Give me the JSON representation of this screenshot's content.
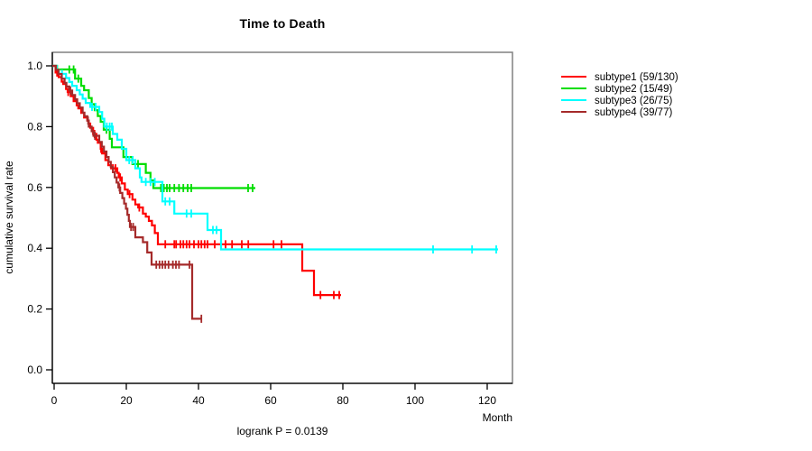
{
  "chart_data": {
    "type": "line",
    "subtype": "kaplan-meier-survival-steps",
    "title": "Time to Death",
    "xlabel": "Month",
    "ylabel": "cumulative survival rate",
    "annotation": "logrank P = 0.0139",
    "xlim": [
      0,
      127
    ],
    "ylim": [
      0,
      1.04
    ],
    "x_ticks": [
      0,
      20,
      40,
      60,
      80,
      100,
      120
    ],
    "y_ticks": [
      "0.0",
      "0.2",
      "0.4",
      "0.6",
      "0.8",
      "1.0"
    ],
    "grid": false,
    "legend_position": "right-outside",
    "frame_color": "#808080",
    "axis_color": "#000000",
    "series": [
      {
        "name": "subtype1 (59/130)",
        "events": "59/130",
        "color": "#FF0000",
        "end_month": 79.5,
        "points": [
          [
            0,
            1.0
          ],
          [
            0.4,
            0.978
          ],
          [
            1.25,
            0.963
          ],
          [
            2.1,
            0.948
          ],
          [
            2.5,
            0.94
          ],
          [
            3.3,
            0.924
          ],
          [
            3.75,
            0.914
          ],
          [
            4.6,
            0.9
          ],
          [
            5.4,
            0.884
          ],
          [
            6.25,
            0.87
          ],
          [
            6.7,
            0.86
          ],
          [
            7.5,
            0.845
          ],
          [
            8.3,
            0.83
          ],
          [
            9.2,
            0.82
          ],
          [
            9.6,
            0.81
          ],
          [
            10,
            0.796
          ],
          [
            10.8,
            0.776
          ],
          [
            11.7,
            0.757
          ],
          [
            12.1,
            0.747
          ],
          [
            12.9,
            0.727
          ],
          [
            13.3,
            0.712
          ],
          [
            14.2,
            0.69
          ],
          [
            15,
            0.673
          ],
          [
            15.8,
            0.663
          ],
          [
            17.5,
            0.648
          ],
          [
            17.9,
            0.633
          ],
          [
            18.75,
            0.613
          ],
          [
            19.6,
            0.593
          ],
          [
            20.4,
            0.578
          ],
          [
            21.7,
            0.56
          ],
          [
            22.5,
            0.544
          ],
          [
            23.3,
            0.534
          ],
          [
            24.6,
            0.514
          ],
          [
            25.4,
            0.504
          ],
          [
            26.25,
            0.49
          ],
          [
            27.1,
            0.475
          ],
          [
            27.9,
            0.45
          ],
          [
            28.75,
            0.413
          ],
          [
            68.75,
            0.326
          ],
          [
            72,
            0.246
          ]
        ],
        "censors": [
          0.8,
          3.9,
          11.2,
          13.0,
          16.3,
          17.0,
          18.3,
          20.9,
          23.6,
          30.8,
          33.3,
          33.8,
          35.0,
          35.8,
          36.7,
          37.5,
          38.75,
          40.0,
          40.8,
          41.7,
          42.5,
          44.5,
          47.5,
          49.3,
          52.0,
          53.8,
          60.8,
          63.0,
          73.8,
          77.5,
          79.0
        ]
      },
      {
        "name": "subtype2 (15/49)",
        "events": "15/49",
        "color": "#00DD00",
        "end_month": 55.75,
        "points": [
          [
            0,
            1.0
          ],
          [
            0.8,
            0.988
          ],
          [
            5.8,
            0.958
          ],
          [
            7.5,
            0.934
          ],
          [
            8.3,
            0.92
          ],
          [
            9.6,
            0.894
          ],
          [
            10.4,
            0.874
          ],
          [
            11.25,
            0.854
          ],
          [
            12.1,
            0.835
          ],
          [
            12.9,
            0.816
          ],
          [
            13.75,
            0.79
          ],
          [
            15.4,
            0.76
          ],
          [
            16,
            0.732
          ],
          [
            19.2,
            0.7
          ],
          [
            21.7,
            0.677
          ],
          [
            25.4,
            0.648
          ],
          [
            26.7,
            0.623
          ],
          [
            27.5,
            0.598
          ]
        ],
        "censors": [
          4.2,
          5.4,
          6.7,
          14.5,
          23.25,
          29.6,
          30.4,
          31.25,
          32.0,
          33.3,
          34.6,
          35.8,
          37.0,
          38.0,
          53.75,
          55.0
        ]
      },
      {
        "name": "subtype3 (26/75)",
        "events": "26/75",
        "color": "#00FFFF",
        "end_month": 123,
        "points": [
          [
            0,
            1.0
          ],
          [
            0.7,
            0.987
          ],
          [
            1.3,
            0.974
          ],
          [
            3.3,
            0.96
          ],
          [
            4.2,
            0.947
          ],
          [
            5,
            0.934
          ],
          [
            6.25,
            0.92
          ],
          [
            7.1,
            0.906
          ],
          [
            7.9,
            0.892
          ],
          [
            8.75,
            0.878
          ],
          [
            10,
            0.865
          ],
          [
            12.5,
            0.848
          ],
          [
            13.3,
            0.826
          ],
          [
            13.9,
            0.8
          ],
          [
            16.25,
            0.776
          ],
          [
            17.5,
            0.757
          ],
          [
            18.75,
            0.727
          ],
          [
            20,
            0.69
          ],
          [
            22.5,
            0.663
          ],
          [
            23.75,
            0.633
          ],
          [
            24.2,
            0.618
          ],
          [
            30,
            0.554
          ],
          [
            33.3,
            0.514
          ],
          [
            42.5,
            0.46
          ],
          [
            46.25,
            0.396
          ]
        ],
        "censors": [
          2.2,
          10.5,
          11.5,
          14.6,
          15.4,
          16.0,
          20.8,
          21.75,
          25.4,
          26.7,
          27.9,
          30.8,
          32.0,
          36.7,
          38.0,
          44.0,
          45.0,
          105.0,
          115.8,
          122.5
        ]
      },
      {
        "name": "subtype4 (39/77)",
        "events": "39/77",
        "color": "#A52A2A",
        "end_month": 41,
        "points": [
          [
            0,
            1.0
          ],
          [
            0.5,
            0.987
          ],
          [
            1.2,
            0.973
          ],
          [
            2.1,
            0.958
          ],
          [
            2.9,
            0.944
          ],
          [
            3.4,
            0.932
          ],
          [
            4.2,
            0.919
          ],
          [
            5,
            0.904
          ],
          [
            5.8,
            0.89
          ],
          [
            6.4,
            0.877
          ],
          [
            7.1,
            0.863
          ],
          [
            7.9,
            0.846
          ],
          [
            8.4,
            0.834
          ],
          [
            9.2,
            0.82
          ],
          [
            9.6,
            0.8
          ],
          [
            10.4,
            0.785
          ],
          [
            10.9,
            0.77
          ],
          [
            12.5,
            0.75
          ],
          [
            13.2,
            0.734
          ],
          [
            13.8,
            0.718
          ],
          [
            14.5,
            0.7
          ],
          [
            15.1,
            0.684
          ],
          [
            15.7,
            0.667
          ],
          [
            16.3,
            0.65
          ],
          [
            16.8,
            0.633
          ],
          [
            17.3,
            0.616
          ],
          [
            17.8,
            0.6
          ],
          [
            18.3,
            0.582
          ],
          [
            18.9,
            0.565
          ],
          [
            19.4,
            0.547
          ],
          [
            19.9,
            0.53
          ],
          [
            20.3,
            0.51
          ],
          [
            20.7,
            0.49
          ],
          [
            21,
            0.47
          ],
          [
            22.5,
            0.436
          ],
          [
            24.6,
            0.42
          ],
          [
            25.8,
            0.386
          ],
          [
            27,
            0.346
          ],
          [
            38.25,
            0.168
          ]
        ],
        "censors": [
          4.5,
          9.4,
          11.3,
          18.1,
          21.3,
          21.9,
          28.3,
          29.2,
          30.0,
          30.8,
          31.7,
          32.9,
          33.75,
          34.6,
          37.5,
          40.8
        ]
      }
    ]
  }
}
